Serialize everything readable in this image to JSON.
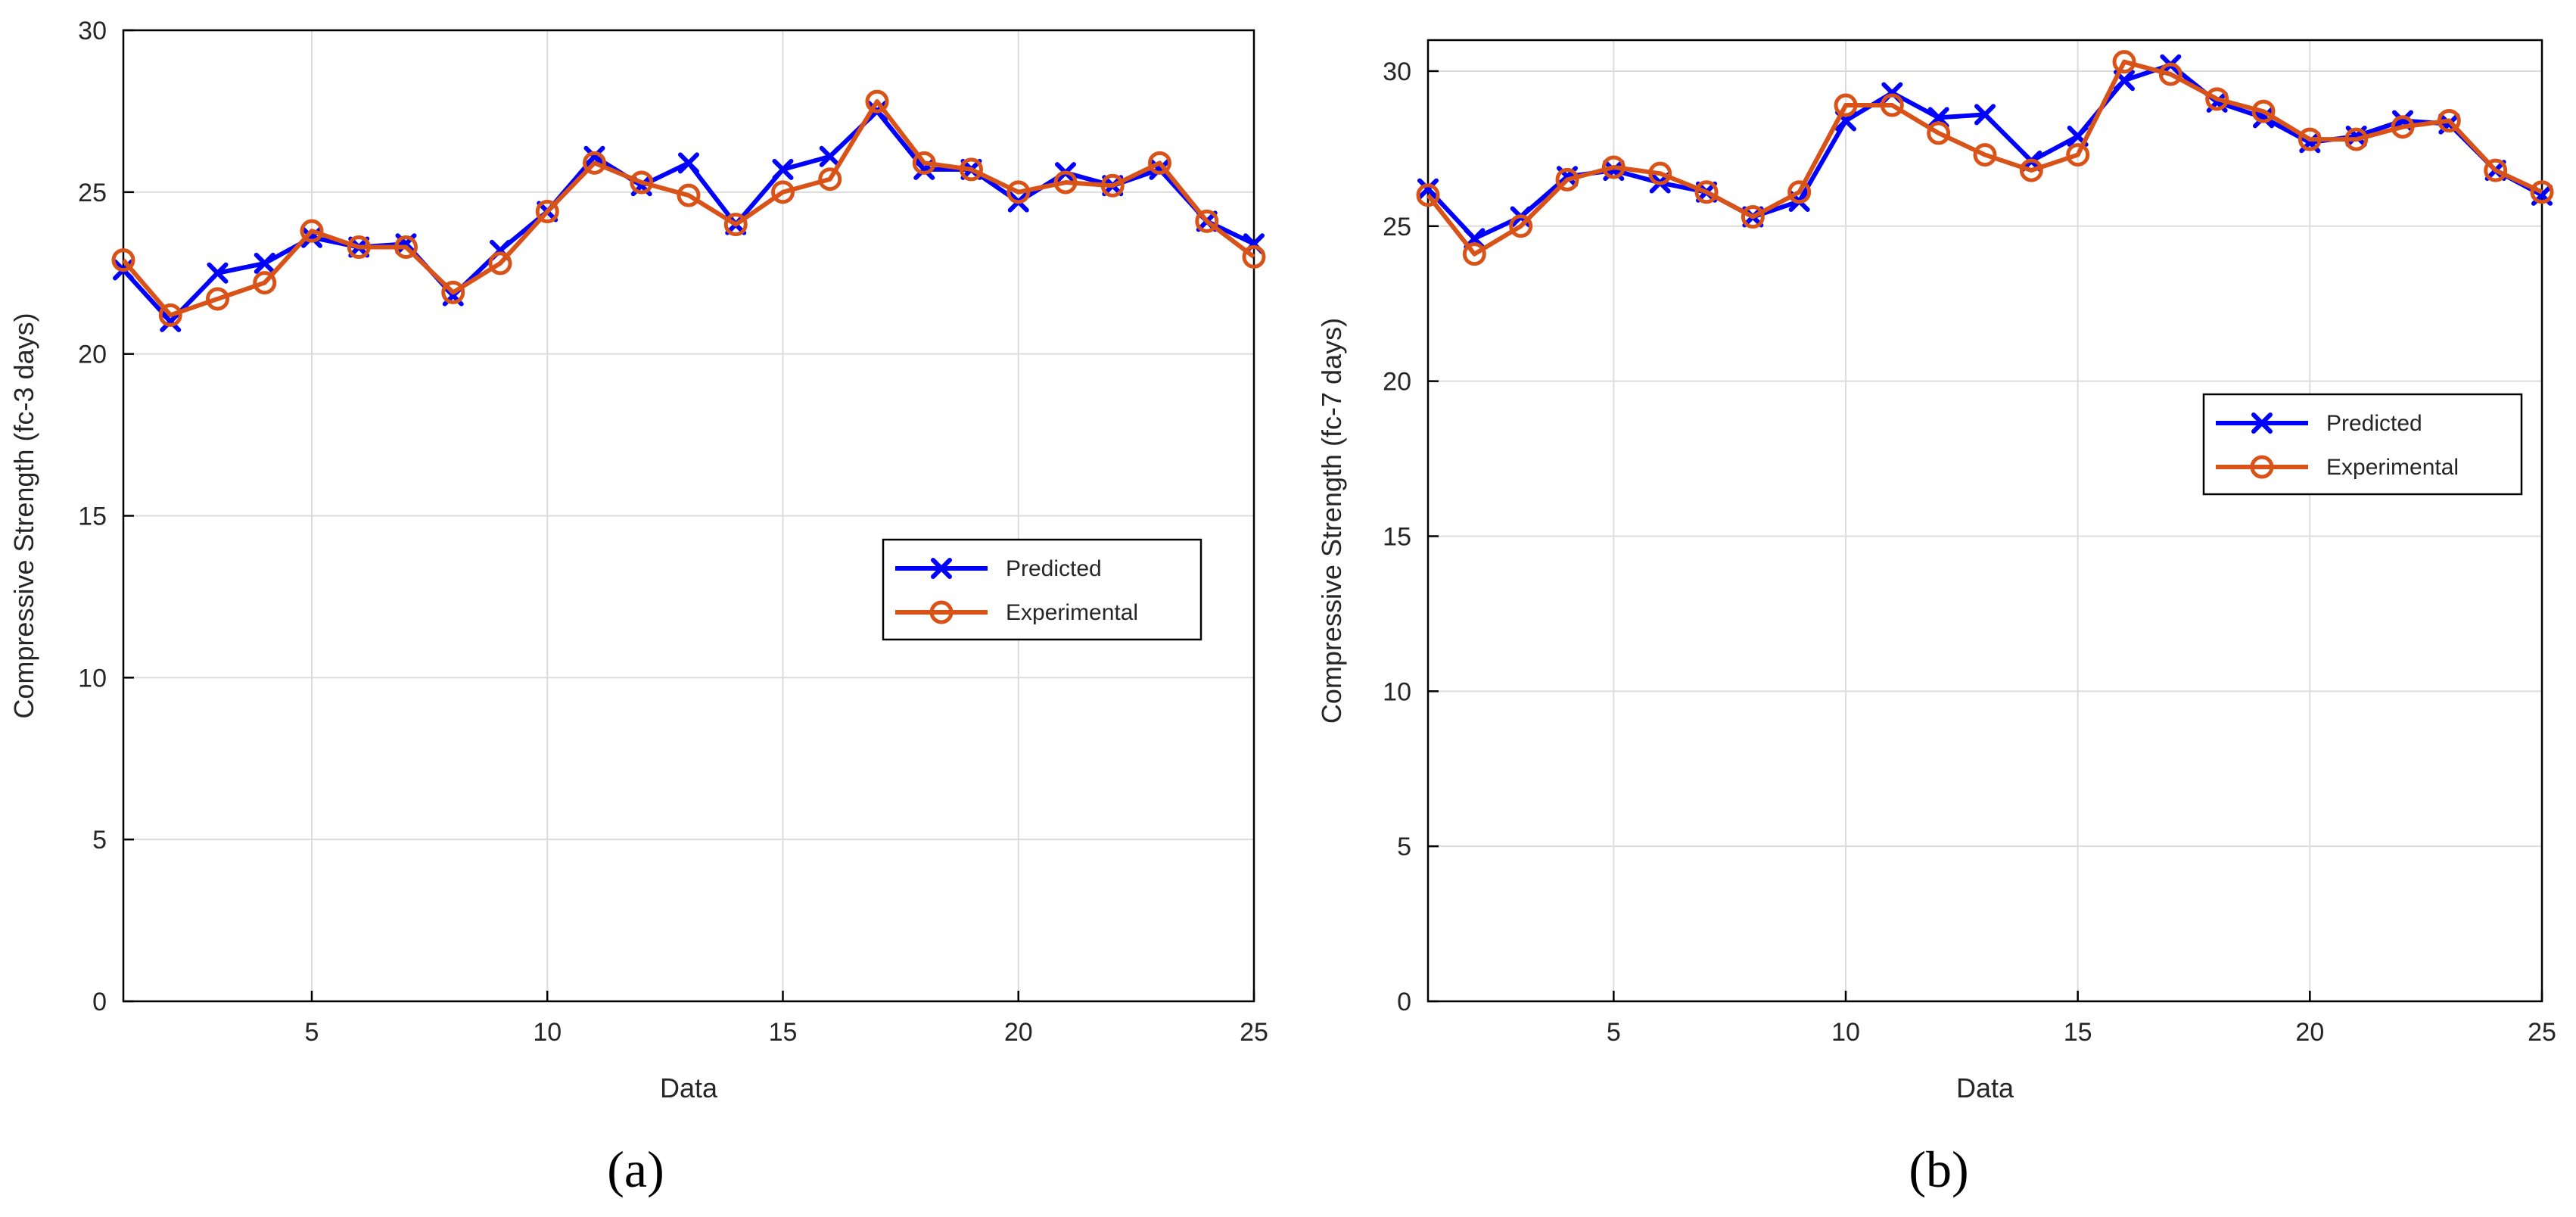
{
  "colors": {
    "predicted": "#0000ff",
    "experimental": "#d95319",
    "grid": "#dcdcdc",
    "axis": "#000000"
  },
  "chart_data": [
    {
      "type": "line",
      "panel_label": "(a)",
      "title": "",
      "xlabel": "Data",
      "ylabel": "Compressive Strength (fc-3 days)",
      "xlim": [
        1,
        25
      ],
      "ylim": [
        0,
        30
      ],
      "xticks": [
        5,
        10,
        15,
        20,
        25
      ],
      "yticks": [
        0,
        5,
        10,
        15,
        20,
        25,
        30
      ],
      "grid": true,
      "legend_position": "center-right",
      "x": [
        1,
        2,
        3,
        4,
        5,
        6,
        7,
        8,
        9,
        10,
        11,
        12,
        13,
        14,
        15,
        16,
        17,
        18,
        19,
        20,
        21,
        22,
        23,
        24,
        25
      ],
      "series": [
        {
          "name": "Predicted",
          "marker": "x",
          "values": [
            22.6,
            21.0,
            22.5,
            22.8,
            23.6,
            23.3,
            23.4,
            21.8,
            23.2,
            24.4,
            26.1,
            25.2,
            25.9,
            24.0,
            25.7,
            26.1,
            27.5,
            25.7,
            25.7,
            24.7,
            25.6,
            25.2,
            25.7,
            24.1,
            23.4
          ]
        },
        {
          "name": "Experimental",
          "marker": "o",
          "values": [
            22.9,
            21.2,
            21.7,
            22.2,
            23.8,
            23.3,
            23.3,
            21.9,
            22.8,
            24.4,
            25.9,
            25.3,
            24.9,
            24.0,
            25.0,
            25.4,
            27.8,
            25.9,
            25.7,
            25.0,
            25.3,
            25.2,
            25.9,
            24.1,
            23.0
          ]
        }
      ]
    },
    {
      "type": "line",
      "panel_label": "(b)",
      "title": "",
      "xlabel": "Data",
      "ylabel": "Compressive Strength (fc-7 days)",
      "xlim": [
        1,
        25
      ],
      "ylim": [
        0,
        31
      ],
      "xticks": [
        5,
        10,
        15,
        20,
        25
      ],
      "yticks": [
        0,
        5,
        10,
        15,
        20,
        25,
        30
      ],
      "grid": true,
      "legend_position": "upper-right",
      "x": [
        1,
        2,
        3,
        4,
        5,
        6,
        7,
        8,
        9,
        10,
        11,
        12,
        13,
        14,
        15,
        16,
        17,
        18,
        19,
        20,
        21,
        22,
        23,
        24,
        25
      ],
      "series": [
        {
          "name": "Predicted",
          "marker": "x",
          "values": [
            26.2,
            24.6,
            25.3,
            26.6,
            26.8,
            26.4,
            26.1,
            25.3,
            25.8,
            28.4,
            29.3,
            28.5,
            28.6,
            27.1,
            27.9,
            29.7,
            30.2,
            29.0,
            28.5,
            27.7,
            27.9,
            28.4,
            28.3,
            26.8,
            26.0
          ]
        },
        {
          "name": "Experimental",
          "marker": "o",
          "values": [
            26.0,
            24.1,
            25.0,
            26.5,
            26.9,
            26.7,
            26.1,
            25.3,
            26.1,
            28.9,
            28.9,
            28.0,
            27.3,
            26.8,
            27.3,
            30.3,
            29.9,
            29.1,
            28.7,
            27.8,
            27.8,
            28.2,
            28.4,
            26.8,
            26.1
          ]
        }
      ]
    }
  ]
}
